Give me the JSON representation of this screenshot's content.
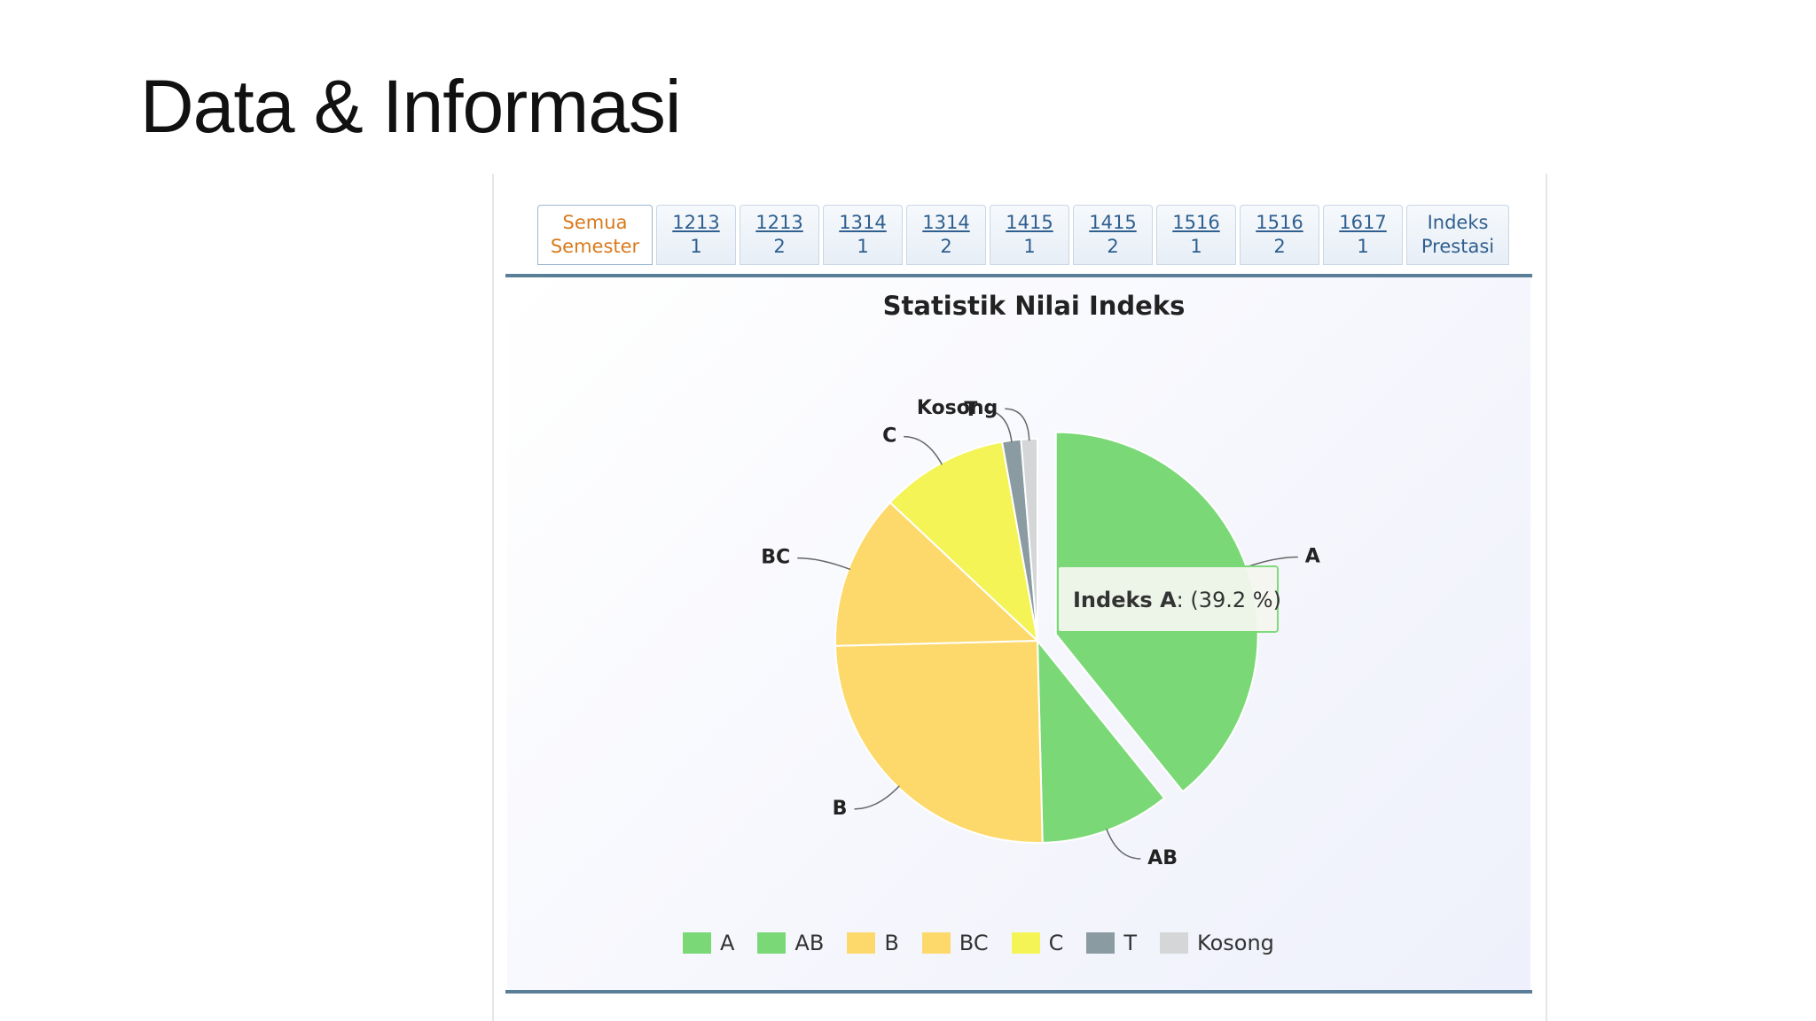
{
  "slide": {
    "title": "Data & Informasi"
  },
  "tabs": [
    {
      "line1": "Semua",
      "line2": "Semester",
      "active": true
    },
    {
      "line1": "1213",
      "line2": "1"
    },
    {
      "line1": "1213",
      "line2": "2"
    },
    {
      "line1": "1314",
      "line2": "1"
    },
    {
      "line1": "1314",
      "line2": "2"
    },
    {
      "line1": "1415",
      "line2": "1"
    },
    {
      "line1": "1415",
      "line2": "2"
    },
    {
      "line1": "1516",
      "line2": "1"
    },
    {
      "line1": "1516",
      "line2": "2"
    },
    {
      "line1": "1617",
      "line2": "1"
    },
    {
      "line1": "Indeks",
      "line2": "Prestasi"
    }
  ],
  "chart_data": {
    "type": "pie",
    "title": "Statistik Nilai Indeks",
    "categories": [
      "A",
      "AB",
      "B",
      "BC",
      "C",
      "T",
      "Kosong"
    ],
    "values": [
      39.2,
      10.4,
      25.0,
      12.4,
      10.2,
      1.5,
      1.3
    ],
    "colors": [
      "#7ad976",
      "#7ad976",
      "#fdd96b",
      "#fdd96b",
      "#f4f456",
      "#8a9ca2",
      "#d4d6d8"
    ],
    "legend_position": "bottom",
    "tooltip": {
      "label": "Indeks A",
      "value": ": (39.2 %)"
    }
  }
}
